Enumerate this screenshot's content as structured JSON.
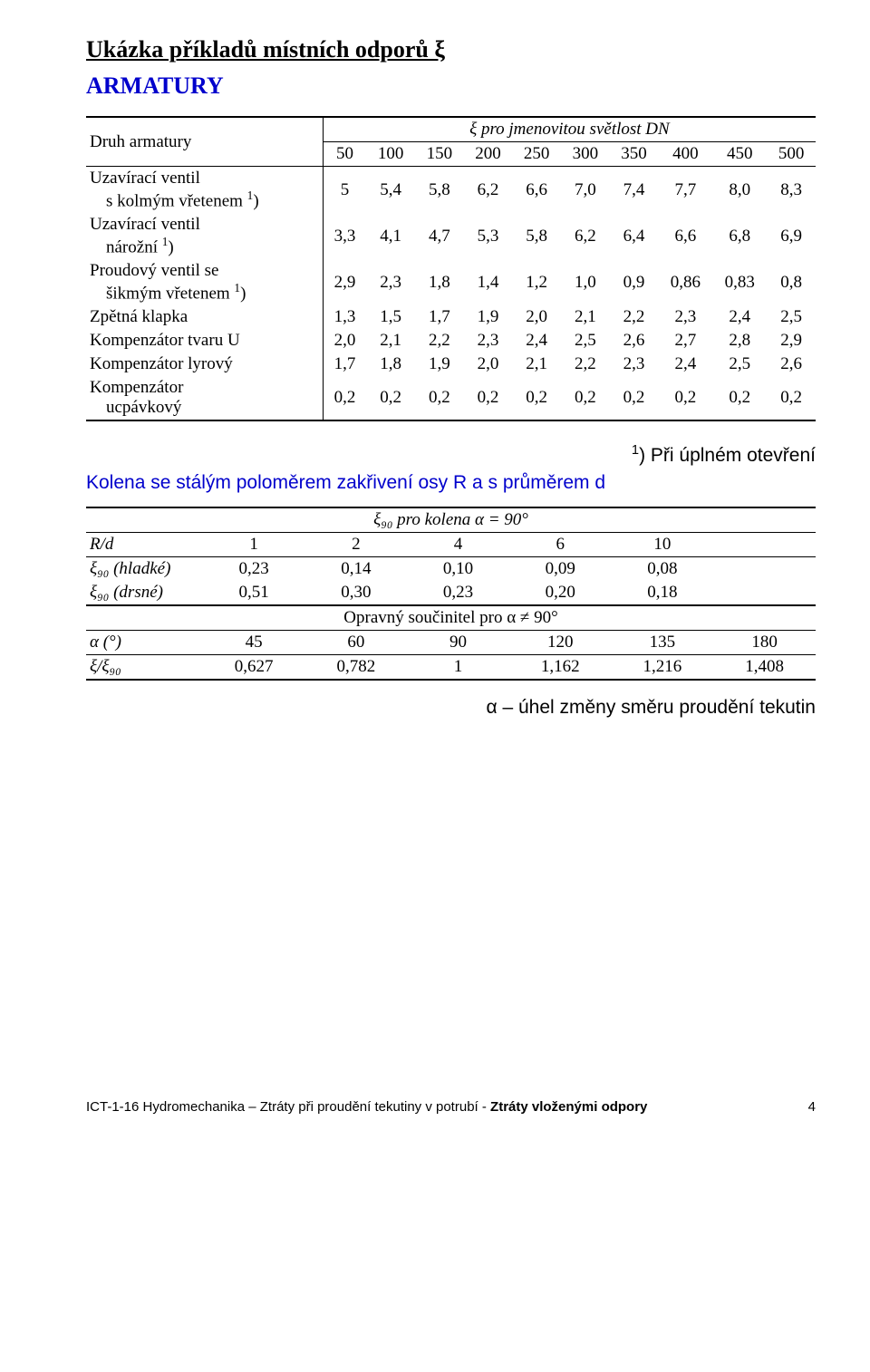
{
  "heading": "Ukázka příkladů místních odporů ξ",
  "subheading": "ARMATURY",
  "table1": {
    "header_col1": "Druh armatury",
    "header_span": "ξ pro jmenovitou světlost DN",
    "dn_values": [
      "50",
      "100",
      "150",
      "200",
      "250",
      "300",
      "350",
      "400",
      "450",
      "500"
    ],
    "rows": [
      {
        "label_1": "Uzavírací ventil",
        "label_2": "s kolmým vřetenem ",
        "label_sup": "1",
        "label_after": ")",
        "vals": [
          "5",
          "5,4",
          "5,8",
          "6,2",
          "6,6",
          "7,0",
          "7,4",
          "7,7",
          "8,0",
          "8,3"
        ]
      },
      {
        "label_1": "Uzavírací ventil",
        "label_2": "nárožní ",
        "label_sup": "1",
        "label_after": ")",
        "vals": [
          "3,3",
          "4,1",
          "4,7",
          "5,3",
          "5,8",
          "6,2",
          "6,4",
          "6,6",
          "6,8",
          "6,9"
        ]
      },
      {
        "label_1": "Proudový ventil se",
        "label_2": "šikmým vřetenem ",
        "label_sup": "1",
        "label_after": ")",
        "vals": [
          "2,9",
          "2,3",
          "1,8",
          "1,4",
          "1,2",
          "1,0",
          "0,9",
          "0,86",
          "0,83",
          "0,8"
        ]
      },
      {
        "label_1": "Zpětná klapka",
        "label_2": "",
        "label_sup": "",
        "label_after": "",
        "vals": [
          "1,3",
          "1,5",
          "1,7",
          "1,9",
          "2,0",
          "2,1",
          "2,2",
          "2,3",
          "2,4",
          "2,5"
        ]
      },
      {
        "label_1": "Kompenzátor tvaru U",
        "label_2": "",
        "label_sup": "",
        "label_after": "",
        "vals": [
          "2,0",
          "2,1",
          "2,2",
          "2,3",
          "2,4",
          "2,5",
          "2,6",
          "2,7",
          "2,8",
          "2,9"
        ]
      },
      {
        "label_1": "Kompenzátor lyrový",
        "label_2": "",
        "label_sup": "",
        "label_after": "",
        "vals": [
          "1,7",
          "1,8",
          "1,9",
          "2,0",
          "2,1",
          "2,2",
          "2,3",
          "2,4",
          "2,5",
          "2,6"
        ]
      },
      {
        "label_1": "Kompenzátor",
        "label_2": "ucpávkový",
        "label_sup": "",
        "label_after": "",
        "vals": [
          "0,2",
          "0,2",
          "0,2",
          "0,2",
          "0,2",
          "0,2",
          "0,2",
          "0,2",
          "0,2",
          "0,2"
        ]
      }
    ]
  },
  "note_sup": "1",
  "note_text": ") Při úplném otevření",
  "blue_line": "Kolena se stálým poloměrem zakřivení osy R a s průměrem d",
  "table2": {
    "header_top": "ξ₉₀ pro kolena α = 90°",
    "rd_label": "R/d",
    "rd_values": [
      "1",
      "2",
      "4",
      "6",
      "10"
    ],
    "row_hladke_label": "ξ₉₀ (hladké)",
    "row_hladke": [
      "0,23",
      "0,14",
      "0,10",
      "0,09",
      "0,08"
    ],
    "row_drsne_label": "ξ₉₀ (drsné)",
    "row_drsne": [
      "0,51",
      "0,30",
      "0,23",
      "0,20",
      "0,18"
    ],
    "header_mid": "Opravný součinitel pro α ≠ 90°",
    "alpha_label": "α (°)",
    "alpha_values": [
      "45",
      "60",
      "90",
      "120",
      "135",
      "180"
    ],
    "ratio_label": "ξ/ξ₉₀",
    "ratio_values": [
      "0,627",
      "0,782",
      "1",
      "1,162",
      "1,216",
      "1,408"
    ]
  },
  "alpha_note": "α – úhel změny směru proudění tekutin",
  "footer_left_plain": "ICT-1-16 Hydromechanika – Ztráty při proudění tekutiny v potrubí  - ",
  "footer_left_bold": "Ztráty vloženými odpory",
  "footer_page": "4"
}
